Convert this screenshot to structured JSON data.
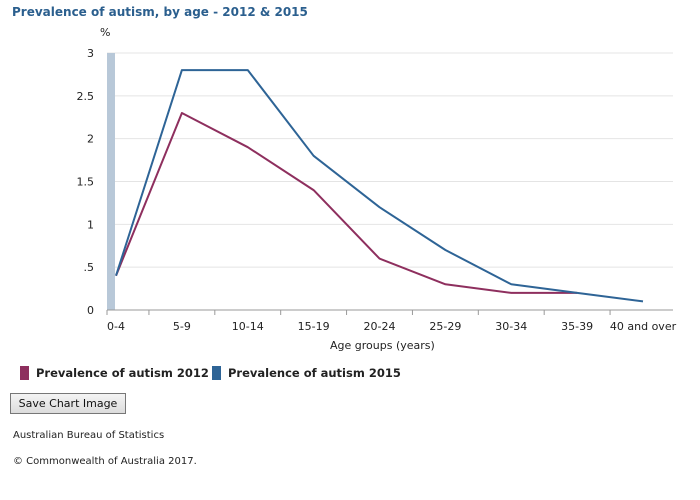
{
  "chart_data": {
    "type": "line",
    "title": "Prevalence of autism, by age - 2012 & 2015",
    "y_unit": "%",
    "xlabel": "Age groups (years)",
    "ylabel": "",
    "categories": [
      "0-4",
      "5-9",
      "10-14",
      "15-19",
      "20-24",
      "25-29",
      "30-34",
      "35-39",
      "40 and over"
    ],
    "y_ticks": [
      "0",
      ".5",
      "1",
      "1.5",
      "2",
      "2.5",
      "3"
    ],
    "ylim": [
      0,
      3
    ],
    "grid": true,
    "legend_position": "bottom",
    "series": [
      {
        "name": "Prevalence of autism 2012",
        "color": "#8e2f5e",
        "values": [
          0.4,
          2.3,
          1.9,
          1.4,
          0.6,
          0.3,
          0.2,
          0.2,
          null
        ]
      },
      {
        "name": "Prevalence of autism 2015",
        "color": "#2e6496",
        "values": [
          0.4,
          2.8,
          2.8,
          1.8,
          1.2,
          0.7,
          0.3,
          0.2,
          0.1
        ]
      }
    ]
  },
  "ui": {
    "save_button_label": "Save Chart Image",
    "source_text": "Australian Bureau of Statistics",
    "copyright_text": "© Commonwealth of Australia 2017."
  }
}
